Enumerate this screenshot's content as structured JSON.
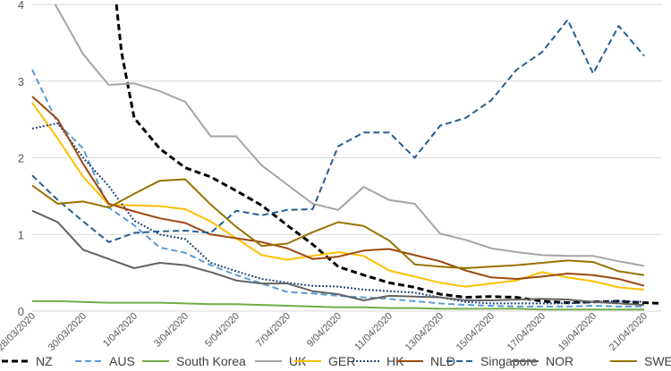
{
  "chart_data": {
    "type": "line",
    "ylim": [
      0,
      4
    ],
    "yticks": [
      "0",
      "1",
      "2",
      "3",
      "4"
    ],
    "grid": "horizontal",
    "legend_position": "bottom",
    "x": [
      "28/03/2020",
      "29/03/2020",
      "30/03/2020",
      "31/03/2020",
      "1/04/2020",
      "2/04/2020",
      "3/04/2020",
      "4/04/2020",
      "5/04/2020",
      "6/04/2020",
      "7/04/2020",
      "8/04/2020",
      "9/04/2020",
      "10/04/2020",
      "11/04/2020",
      "12/04/2020",
      "13/04/2020",
      "14/04/2020",
      "15/04/2020",
      "16/04/2020",
      "17/04/2020",
      "18/04/2020",
      "19/04/2020",
      "20/04/2020",
      "21/04/2020"
    ],
    "xtick_labels": [
      "28/03/2020",
      "30/03/2020",
      "1/04/2020",
      "3/04/2020",
      "5/04/2020",
      "7/04/2020",
      "9/04/2020",
      "11/04/2020",
      "13/04/2020",
      "15/04/2020",
      "17/04/2020",
      "19/04/2020",
      "21/04/2020"
    ],
    "series": [
      {
        "name": "NZ",
        "color": "#000000",
        "dash": "dash",
        "width": 3,
        "values": [
          null,
          null,
          null,
          null,
          2.52,
          2.12,
          1.87,
          1.75,
          1.57,
          1.38,
          1.12,
          0.87,
          0.58,
          0.47,
          0.37,
          0.31,
          0.22,
          0.18,
          0.19,
          0.18,
          0.13,
          0.11,
          0.12,
          0.13,
          0.11
        ],
        "extra": {
          "pre_start": [
            [
              3.3,
              4.0
            ],
            [
              3.5,
              3.38
            ]
          ],
          "tail_to": 0.1
        }
      },
      {
        "name": "AUS",
        "color": "#5b9bd5",
        "dash": "dash",
        "width": 2,
        "values": [
          3.15,
          2.45,
          2.12,
          1.35,
          1.12,
          0.83,
          0.76,
          0.6,
          0.47,
          0.36,
          0.25,
          0.23,
          0.2,
          0.18,
          0.16,
          0.13,
          0.1,
          0.08,
          0.07,
          0.06,
          0.06,
          0.06,
          0.07,
          0.06,
          0.06
        ]
      },
      {
        "name": "South Korea",
        "color": "#70ad47",
        "dash": "solid",
        "width": 2,
        "values": [
          0.13,
          0.13,
          0.12,
          0.11,
          0.11,
          0.11,
          0.1,
          0.09,
          0.09,
          0.08,
          0.07,
          0.06,
          0.05,
          0.05,
          0.04,
          0.04,
          0.03,
          0.03,
          0.03,
          0.03,
          0.02,
          0.02,
          0.02,
          0.02,
          0.02
        ]
      },
      {
        "name": "UK",
        "color": "#a5a5a5",
        "dash": "solid",
        "width": 2,
        "values": [
          null,
          null,
          3.35,
          2.95,
          2.97,
          2.87,
          2.73,
          2.28,
          2.28,
          1.9,
          1.65,
          1.4,
          1.32,
          1.62,
          1.45,
          1.4,
          1.01,
          0.93,
          0.82,
          0.77,
          0.73,
          0.72,
          0.72,
          0.65,
          0.59
        ],
        "extra": {
          "pre_start": [
            [
              0.9,
              4.0
            ]
          ]
        }
      },
      {
        "name": "GER",
        "color": "#ffc000",
        "dash": "solid",
        "width": 2,
        "values": [
          2.72,
          2.25,
          1.75,
          1.39,
          1.38,
          1.37,
          1.33,
          1.17,
          0.95,
          0.73,
          0.67,
          0.72,
          0.77,
          0.72,
          0.53,
          0.45,
          0.37,
          0.32,
          0.36,
          0.4,
          0.51,
          0.44,
          0.39,
          0.31,
          0.28
        ]
      },
      {
        "name": "HK",
        "color": "#264478",
        "dash": "dot",
        "width": 2,
        "values": [
          2.38,
          2.45,
          2.0,
          1.63,
          1.18,
          1.0,
          0.94,
          0.63,
          0.52,
          0.42,
          0.37,
          0.33,
          0.32,
          0.28,
          0.26,
          0.24,
          0.18,
          0.12,
          0.1,
          0.1,
          0.1,
          0.1,
          0.12,
          0.13,
          0.12
        ]
      },
      {
        "name": "NLD",
        "color": "#9e480e",
        "dash": "solid",
        "width": 2,
        "values": [
          2.8,
          2.5,
          1.92,
          1.4,
          1.3,
          1.21,
          1.15,
          1.0,
          0.95,
          0.9,
          0.82,
          0.68,
          0.71,
          0.79,
          0.81,
          0.73,
          0.65,
          0.53,
          0.44,
          0.42,
          0.45,
          0.49,
          0.47,
          0.42,
          0.33
        ]
      },
      {
        "name": "Singapore",
        "color": "#255e91",
        "dash": "dash",
        "width": 2,
        "values": [
          1.77,
          1.45,
          1.17,
          0.9,
          1.02,
          1.04,
          1.05,
          1.02,
          1.31,
          1.25,
          1.32,
          1.33,
          2.15,
          2.33,
          2.33,
          2.0,
          2.42,
          2.52,
          2.75,
          3.15,
          3.38,
          3.8,
          3.1,
          3.72,
          3.33
        ]
      },
      {
        "name": "NOR",
        "color": "#636363",
        "dash": "solid",
        "width": 2,
        "values": [
          1.31,
          1.16,
          0.8,
          0.68,
          0.56,
          0.63,
          0.6,
          0.51,
          0.4,
          0.36,
          0.36,
          0.26,
          0.22,
          0.14,
          0.2,
          0.19,
          0.18,
          0.14,
          0.14,
          0.15,
          0.16,
          0.15,
          0.12,
          0.1,
          0.08
        ]
      },
      {
        "name": "SWE",
        "color": "#997300",
        "dash": "solid",
        "width": 2,
        "values": [
          1.64,
          1.4,
          1.43,
          1.35,
          1.53,
          1.7,
          1.72,
          1.39,
          1.1,
          0.85,
          0.88,
          1.03,
          1.16,
          1.11,
          0.92,
          0.61,
          0.58,
          0.56,
          0.58,
          0.6,
          0.63,
          0.66,
          0.64,
          0.52,
          0.47
        ]
      }
    ]
  }
}
